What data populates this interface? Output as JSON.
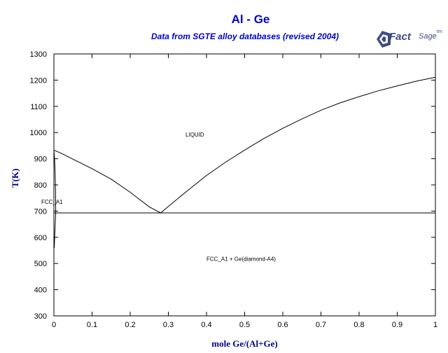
{
  "header": {
    "title": "Al - Ge",
    "subtitle": "Data from SGTE alloy databases (revised 2004)"
  },
  "logo": {
    "fact": "Fact",
    "sage": "Sage",
    "tm": "tm",
    "color": "#3c4b86"
  },
  "chart_data": {
    "type": "line",
    "title": "Al - Ge",
    "subtitle": "Data from SGTE alloy databases (revised 2004)",
    "xlabel": "mole Ge/(Al+Ge)",
    "ylabel": "T(K)",
    "xlim": [
      0,
      1
    ],
    "ylim": [
      300,
      1300
    ],
    "xticks": [
      "0",
      "0.1",
      "0.2",
      "0.3",
      "0.4",
      "0.5",
      "0.6",
      "0.7",
      "0.8",
      "0.9",
      "1"
    ],
    "yticks": [
      "300",
      "400",
      "500",
      "600",
      "700",
      "800",
      "900",
      "1000",
      "1100",
      "1200",
      "1300"
    ],
    "grid": false,
    "line_color": "#000000",
    "title_color": "#0000cc",
    "axis_title_color": "#00008b",
    "series": [
      {
        "values": [
          [
            0,
            933
          ],
          [
            0.02,
            920
          ],
          [
            0.05,
            898
          ],
          [
            0.1,
            862
          ],
          [
            0.15,
            822
          ],
          [
            0.2,
            772
          ],
          [
            0.25,
            716
          ],
          [
            0.28,
            693
          ]
        ]
      },
      {
        "values": [
          [
            0.28,
            693
          ],
          [
            0.3,
            718
          ],
          [
            0.35,
            778
          ],
          [
            0.4,
            836
          ],
          [
            0.45,
            887
          ],
          [
            0.5,
            933
          ],
          [
            0.55,
            977
          ],
          [
            0.6,
            1016
          ],
          [
            0.65,
            1052
          ],
          [
            0.7,
            1085
          ],
          [
            0.75,
            1113
          ],
          [
            0.8,
            1137
          ],
          [
            0.85,
            1159
          ],
          [
            0.9,
            1178
          ],
          [
            0.95,
            1196
          ],
          [
            1,
            1211
          ]
        ]
      },
      {
        "values": [
          [
            0,
            693
          ],
          [
            1,
            693
          ]
        ]
      },
      {
        "values": [
          [
            0,
            933
          ],
          [
            0.0015,
            905
          ],
          [
            0.003,
            860
          ],
          [
            0.004,
            800
          ],
          [
            0.0045,
            745
          ],
          [
            0.0048,
            693
          ],
          [
            0.0035,
            650
          ],
          [
            0.002,
            600
          ],
          [
            0.001,
            560
          ]
        ]
      }
    ],
    "annotations": [
      {
        "text": "LIQUID",
        "x": 0.345,
        "y": 985
      },
      {
        "text": "FCC_A1",
        "x": -0.035,
        "y": 728
      },
      {
        "text": "FCC_A1 + Ge(diamond-A4)",
        "x": 0.4,
        "y": 510
      }
    ]
  }
}
